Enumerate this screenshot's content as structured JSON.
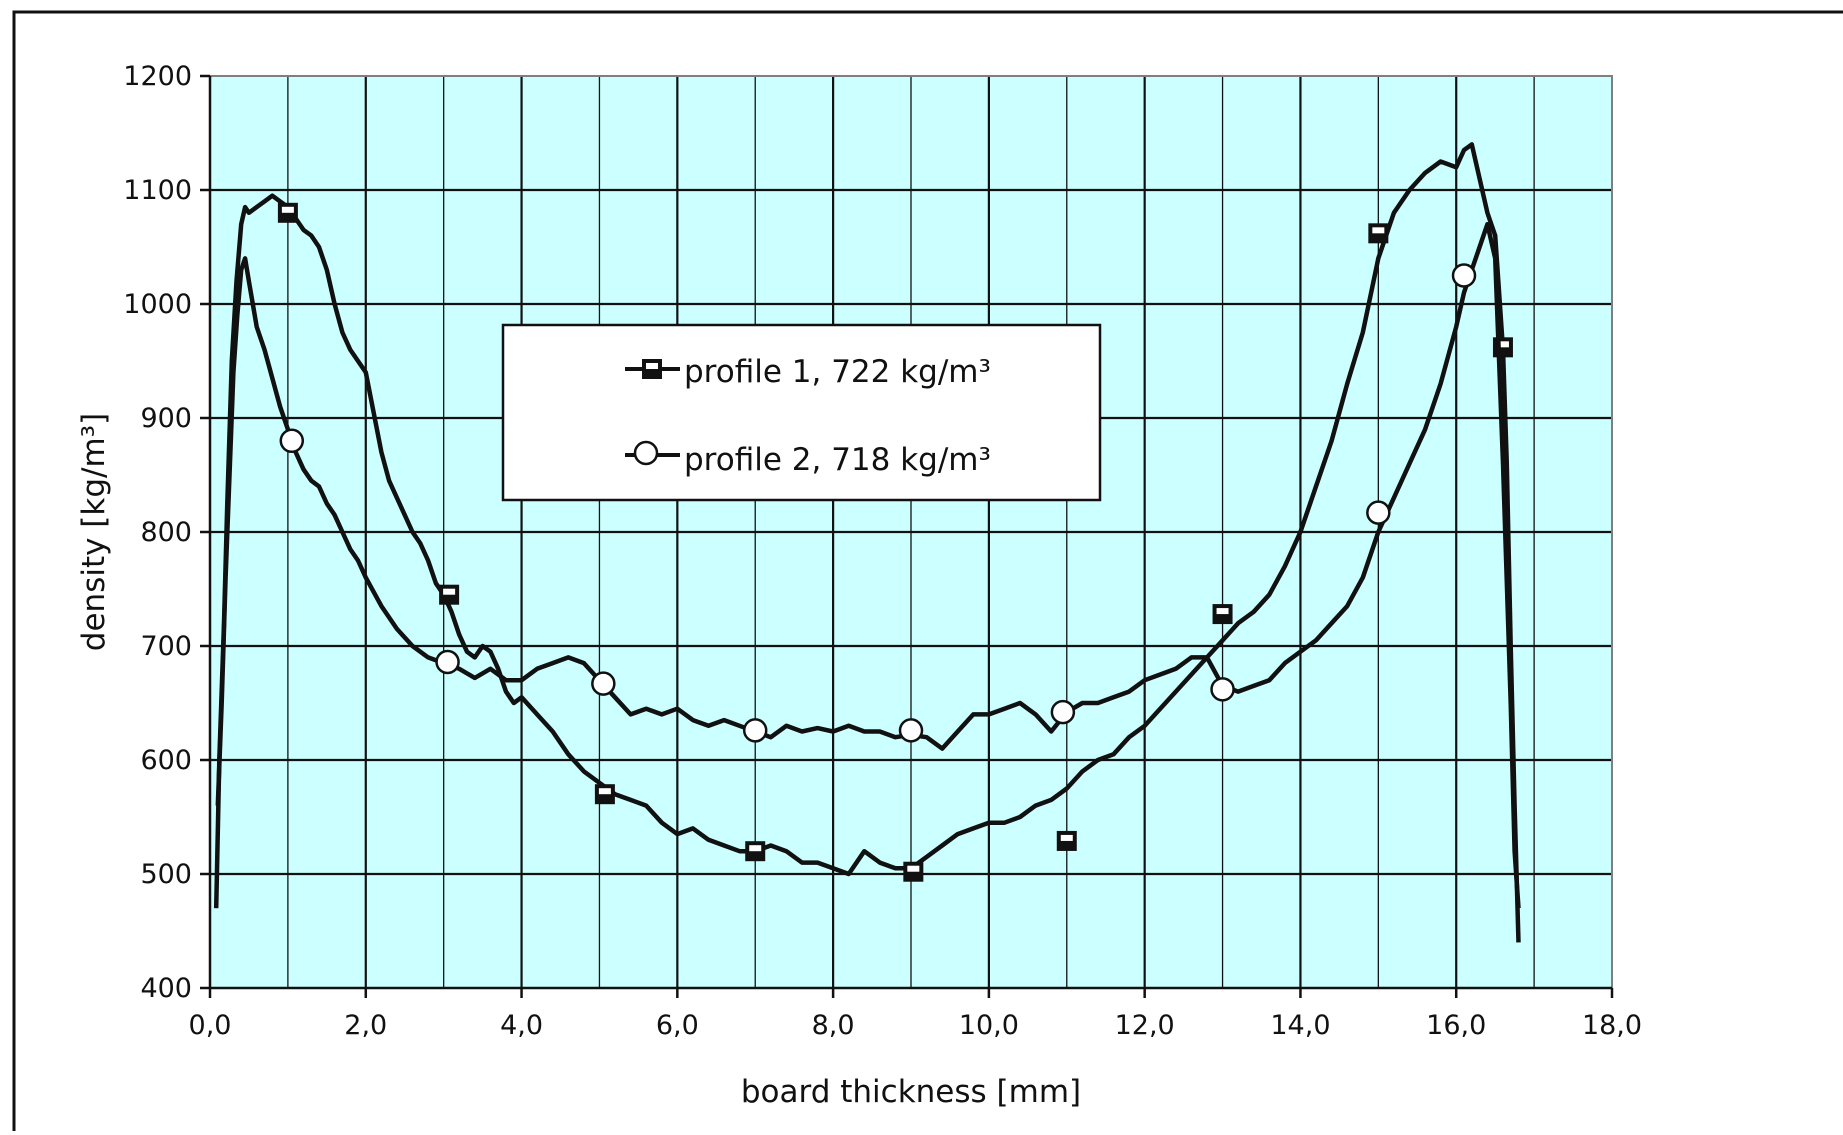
{
  "chart_data": {
    "type": "line",
    "title": "",
    "xlabel": "board thickness [mm]",
    "ylabel": "density [kg/m³]",
    "xlim": [
      0,
      18
    ],
    "ylim": [
      400,
      1200
    ],
    "x_ticks": [
      0,
      2,
      4,
      6,
      8,
      10,
      12,
      14,
      16,
      18
    ],
    "x_tick_labels": [
      "0,0",
      "2,0",
      "4,0",
      "6,0",
      "8,0",
      "10,0",
      "12,0",
      "14,0",
      "16,0",
      "18,0"
    ],
    "y_ticks": [
      400,
      500,
      600,
      700,
      800,
      900,
      1000,
      1100,
      1200
    ],
    "y_tick_labels": [
      "400",
      "500",
      "600",
      "700",
      "800",
      "900",
      "1000",
      "1100",
      "1200"
    ],
    "x_minor_step": 1,
    "grid": true,
    "plot_background": "#ccffff",
    "line_color": "#111111",
    "legend_position": "center",
    "series": [
      {
        "name": "profile 1, 722 kg/m³",
        "marker": "square",
        "x": [
          0.08,
          0.12,
          0.18,
          0.22,
          0.28,
          0.34,
          0.4,
          0.45,
          0.5,
          0.6,
          0.7,
          0.8,
          0.9,
          1.0,
          1.1,
          1.2,
          1.3,
          1.4,
          1.5,
          1.6,
          1.7,
          1.8,
          1.9,
          2.0,
          2.1,
          2.2,
          2.3,
          2.4,
          2.5,
          2.6,
          2.7,
          2.8,
          2.9,
          3.0,
          3.1,
          3.2,
          3.3,
          3.4,
          3.5,
          3.6,
          3.7,
          3.8,
          3.9,
          4.0,
          4.2,
          4.4,
          4.6,
          4.8,
          5.0,
          5.2,
          5.4,
          5.6,
          5.8,
          6.0,
          6.2,
          6.4,
          6.6,
          6.8,
          7.0,
          7.2,
          7.4,
          7.6,
          7.8,
          8.0,
          8.2,
          8.4,
          8.6,
          8.8,
          9.0,
          9.2,
          9.4,
          9.6,
          9.8,
          10.0,
          10.2,
          10.4,
          10.6,
          10.8,
          11.0,
          11.2,
          11.4,
          11.6,
          11.8,
          12.0,
          12.2,
          12.4,
          12.6,
          12.8,
          13.0,
          13.2,
          13.4,
          13.6,
          13.8,
          14.0,
          14.2,
          14.4,
          14.6,
          14.8,
          15.0,
          15.2,
          15.4,
          15.6,
          15.8,
          16.0,
          16.1,
          16.2,
          16.3,
          16.4,
          16.5,
          16.6,
          16.65,
          16.7,
          16.75,
          16.8
        ],
        "values": [
          470,
          600,
          720,
          820,
          950,
          1020,
          1070,
          1085,
          1080,
          1085,
          1090,
          1095,
          1090,
          1085,
          1075,
          1065,
          1060,
          1050,
          1030,
          1000,
          975,
          960,
          950,
          940,
          905,
          870,
          845,
          830,
          815,
          800,
          790,
          775,
          755,
          745,
          730,
          710,
          695,
          690,
          700,
          695,
          680,
          660,
          650,
          655,
          640,
          625,
          605,
          590,
          580,
          570,
          565,
          560,
          545,
          535,
          540,
          530,
          525,
          520,
          520,
          525,
          520,
          510,
          510,
          505,
          500,
          520,
          510,
          505,
          505,
          515,
          525,
          535,
          540,
          545,
          545,
          550,
          560,
          565,
          575,
          590,
          600,
          605,
          620,
          630,
          645,
          660,
          675,
          690,
          705,
          720,
          730,
          745,
          770,
          800,
          840,
          880,
          930,
          975,
          1040,
          1080,
          1100,
          1115,
          1125,
          1120,
          1135,
          1140,
          1110,
          1080,
          1060,
          960,
          860,
          700,
          560,
          440
        ],
        "marker_points": [
          {
            "x": 1.0,
            "y": 1080
          },
          {
            "x": 3.07,
            "y": 745
          },
          {
            "x": 5.07,
            "y": 570
          },
          {
            "x": 7.0,
            "y": 520
          },
          {
            "x": 9.03,
            "y": 502
          },
          {
            "x": 11.0,
            "y": 529
          },
          {
            "x": 13.0,
            "y": 728
          },
          {
            "x": 15.0,
            "y": 1062
          },
          {
            "x": 16.6,
            "y": 962
          }
        ]
      },
      {
        "name": "profile 2, 718 kg/m³",
        "marker": "circle",
        "x": [
          0.1,
          0.15,
          0.2,
          0.25,
          0.3,
          0.35,
          0.4,
          0.45,
          0.5,
          0.6,
          0.7,
          0.8,
          0.9,
          1.0,
          1.1,
          1.2,
          1.3,
          1.4,
          1.5,
          1.6,
          1.7,
          1.8,
          1.9,
          2.0,
          2.2,
          2.4,
          2.6,
          2.8,
          3.0,
          3.2,
          3.4,
          3.6,
          3.8,
          4.0,
          4.2,
          4.4,
          4.6,
          4.8,
          5.0,
          5.2,
          5.4,
          5.6,
          5.8,
          6.0,
          6.2,
          6.4,
          6.6,
          6.8,
          7.0,
          7.2,
          7.4,
          7.6,
          7.8,
          8.0,
          8.2,
          8.4,
          8.6,
          8.8,
          9.0,
          9.2,
          9.4,
          9.6,
          9.8,
          10.0,
          10.2,
          10.4,
          10.6,
          10.8,
          11.0,
          11.2,
          11.4,
          11.6,
          11.8,
          12.0,
          12.2,
          12.4,
          12.6,
          12.8,
          13.0,
          13.2,
          13.4,
          13.6,
          13.8,
          14.0,
          14.2,
          14.4,
          14.6,
          14.8,
          15.0,
          15.2,
          15.4,
          15.6,
          15.8,
          16.0,
          16.1,
          16.2,
          16.3,
          16.4,
          16.5,
          16.6,
          16.7,
          16.75,
          16.8
        ],
        "values": [
          560,
          650,
          760,
          850,
          940,
          990,
          1030,
          1040,
          1020,
          980,
          960,
          935,
          910,
          890,
          870,
          855,
          845,
          840,
          825,
          815,
          800,
          785,
          775,
          760,
          735,
          715,
          700,
          690,
          685,
          680,
          672,
          680,
          670,
          670,
          680,
          685,
          690,
          685,
          670,
          655,
          640,
          645,
          640,
          645,
          635,
          630,
          635,
          630,
          625,
          620,
          630,
          625,
          628,
          625,
          630,
          625,
          625,
          620,
          622,
          620,
          610,
          625,
          640,
          640,
          645,
          650,
          640,
          625,
          642,
          650,
          650,
          655,
          660,
          670,
          675,
          680,
          690,
          690,
          665,
          660,
          665,
          670,
          685,
          695,
          705,
          720,
          735,
          760,
          800,
          830,
          860,
          890,
          930,
          980,
          1010,
          1030,
          1050,
          1070,
          1040,
          860,
          650,
          520,
          470
        ],
        "marker_points": [
          {
            "x": 1.05,
            "y": 880
          },
          {
            "x": 3.05,
            "y": 686
          },
          {
            "x": 5.05,
            "y": 667
          },
          {
            "x": 7.0,
            "y": 626
          },
          {
            "x": 9.0,
            "y": 626
          },
          {
            "x": 10.95,
            "y": 642
          },
          {
            "x": 13.0,
            "y": 662
          },
          {
            "x": 15.0,
            "y": 817
          },
          {
            "x": 16.1,
            "y": 1025
          }
        ]
      }
    ]
  }
}
